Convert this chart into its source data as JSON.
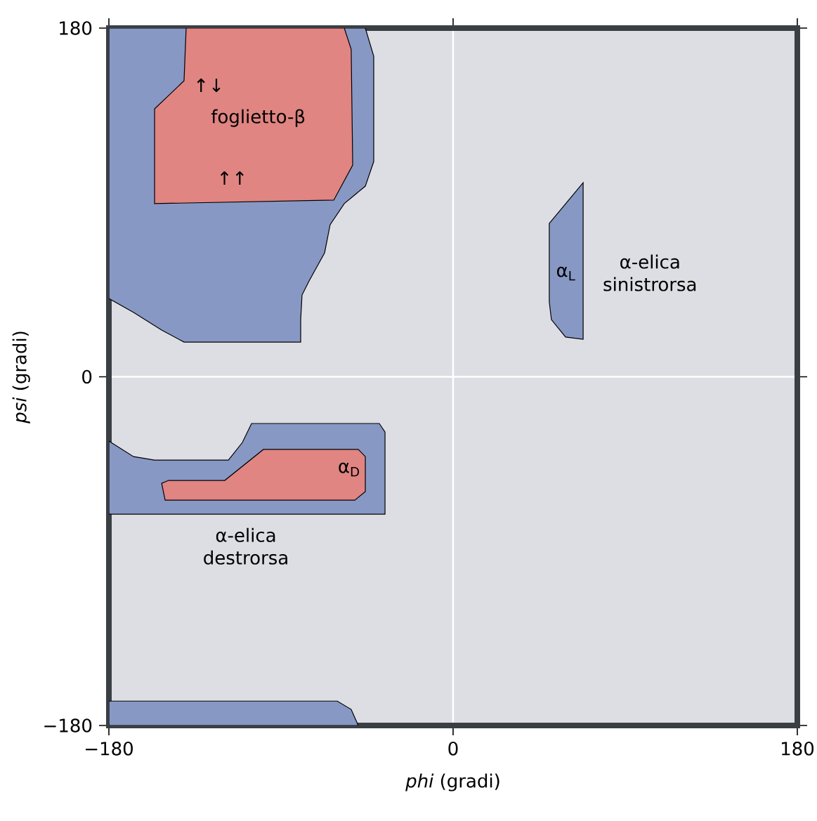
{
  "chart_data": {
    "type": "area",
    "xlabel": "*phi* (gradi)",
    "ylabel": "*psi* (gradi)",
    "xlim": [
      -180,
      180
    ],
    "ylim": [
      -180,
      180
    ],
    "xticks": [
      {
        "value": -180,
        "label": "−180"
      },
      0,
      180
    ],
    "yticks": [
      {
        "value": -180,
        "label": "−180"
      },
      0,
      180
    ],
    "series": [
      {
        "color": "#8898c4",
        "x": [
          -180,
          -45.9,
          -41.5,
          -41.5,
          -45.9,
          -56.9,
          -64.3,
          -67.2,
          -75.3,
          -79,
          -79.7,
          -79.7,
          -140.7,
          -152.4,
          -167,
          -180
        ],
        "values": [
          180,
          180,
          165.5,
          111.1,
          98.4,
          89.4,
          78.5,
          64,
          49.5,
          42.2,
          29.5,
          17.9,
          17.9,
          24.1,
          33.2,
          40.4
        ]
      },
      {
        "color": "#e08582",
        "x": [
          -139.6,
          -56.9,
          -53.3,
          -52.5,
          -62.4,
          -156.1,
          -156.1,
          -140.7
        ],
        "values": [
          180,
          180,
          169.1,
          109.3,
          91.2,
          89.4,
          138.3,
          152.8
        ]
      },
      {
        "color": "#8898c4",
        "x": [
          50.3,
          68.0,
          68.0,
          58.8,
          51.4,
          50.3
        ],
        "values": [
          79.2,
          100.2,
          19.4,
          20.5,
          29.5,
          38.6
        ]
      },
      {
        "color": "#8898c4",
        "x": [
          -180,
          -167.1,
          -156.1,
          -117.5,
          -110.2,
          -105.4,
          -38.6,
          -35.6,
          -35.6,
          -180
        ],
        "values": [
          -33.2,
          -41.2,
          -43,
          -43,
          -33.9,
          -24.1,
          -24.1,
          -28.5,
          -70.9,
          -70.9
        ]
      },
      {
        "color": "#e08582",
        "x": [
          -152.4,
          -150.6,
          -51.4,
          -45.9,
          -45.9,
          -49.6,
          -99.2,
          -119.4,
          -148.8
        ],
        "values": [
          -55,
          -63.7,
          -63.7,
          -59.3,
          -41.2,
          -37.5,
          -37.5,
          -53.5,
          -53.5
        ]
      },
      {
        "color": "#8898c4",
        "x": [
          -180,
          -180,
          -60.6,
          -53.3,
          -49.6
        ],
        "values": [
          -180,
          -167.4,
          -167.4,
          -171.7,
          -180
        ]
      }
    ],
    "grid": true,
    "annotations": [
      "foglietto-β",
      "↑↓",
      "↑↑",
      "α-elica sinistrorsa",
      "α$_{L}$",
      "α-elica destrorsa",
      "α$_{D}$"
    ]
  }
}
